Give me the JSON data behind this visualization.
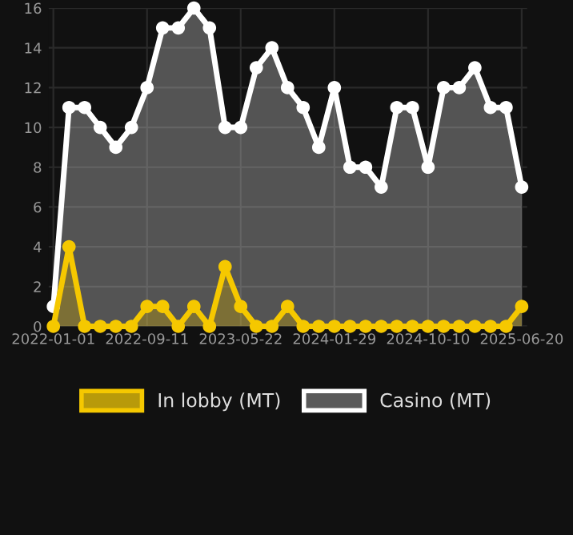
{
  "chart_data": {
    "type": "area",
    "categories": [
      "2022-01-01",
      null,
      null,
      null,
      null,
      null,
      "2022-09-11",
      null,
      null,
      null,
      null,
      null,
      "2023-05-22",
      null,
      null,
      null,
      null,
      null,
      "2024-01-29",
      null,
      null,
      null,
      null,
      null,
      "2024-10-10",
      null,
      null,
      null,
      null,
      null,
      "2025-06-20"
    ],
    "series": [
      {
        "name": "Casino (MT)",
        "color": "#ffffff",
        "values": [
          1,
          11,
          11,
          10,
          9,
          10,
          12,
          15,
          15,
          16,
          15,
          10,
          10,
          13,
          14,
          12,
          11,
          9,
          12,
          8,
          8,
          7,
          11,
          11,
          8,
          12,
          12,
          13,
          11,
          11,
          7
        ]
      },
      {
        "name": "In lobby (MT)",
        "color": "#f5c800",
        "values": [
          0,
          4,
          0,
          0,
          0,
          0,
          1,
          1,
          0,
          1,
          0,
          3,
          1,
          0,
          0,
          1,
          0,
          0,
          0,
          0,
          0,
          0,
          0,
          0,
          0,
          0,
          0,
          0,
          0,
          0,
          1
        ]
      }
    ],
    "ylim": [
      0,
      16
    ],
    "yticks": [
      0,
      2,
      4,
      6,
      8,
      10,
      12,
      14,
      16
    ],
    "grid": true,
    "legend": "bottom",
    "marker": "circle",
    "line_style": "solid"
  }
}
